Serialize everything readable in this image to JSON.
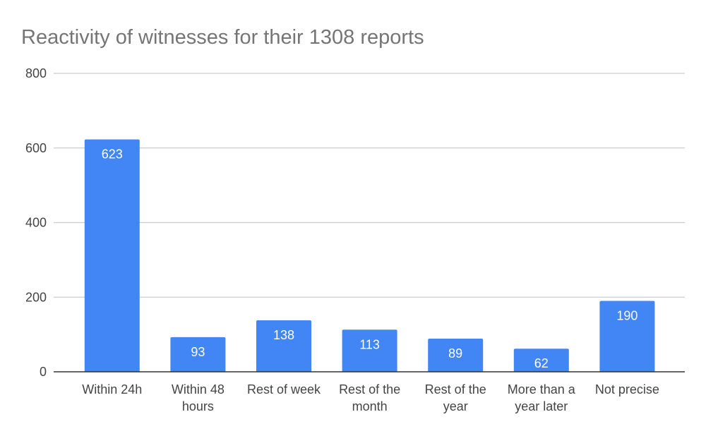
{
  "chart_data": {
    "type": "bar",
    "title": "Reactivity of witnesses for their 1308 reports",
    "xlabel": "",
    "ylabel": "",
    "categories": [
      [
        "Within 24h"
      ],
      [
        "Within 48",
        "hours"
      ],
      [
        "Rest of week"
      ],
      [
        "Rest of the",
        "month"
      ],
      [
        "Rest of the",
        "year"
      ],
      [
        "More than a",
        "year later"
      ],
      [
        "Not precise"
      ]
    ],
    "values": [
      623,
      93,
      138,
      113,
      89,
      62,
      190
    ],
    "ylim": [
      0,
      800
    ],
    "yticks": [
      0,
      200,
      400,
      600,
      800
    ],
    "grid": true,
    "legend": "none",
    "bar_color": "#4285f4",
    "data_labels": true
  }
}
